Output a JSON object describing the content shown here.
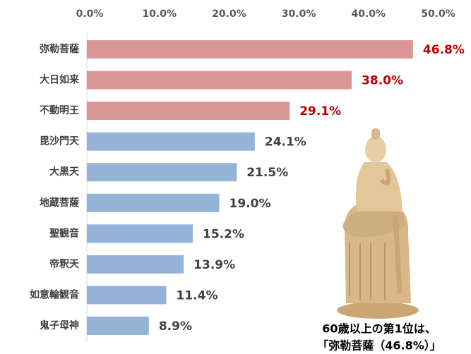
{
  "chart_data": {
    "type": "hbar",
    "categories": [
      "弥勒菩薩",
      "大日如来",
      "不動明王",
      "毘沙門天",
      "大黒天",
      "地蔵菩薩",
      "聖観音",
      "帝釈天",
      "如意輪観音",
      "鬼子母神"
    ],
    "values": [
      46.8,
      38.0,
      29.1,
      24.1,
      21.5,
      19.0,
      15.2,
      13.9,
      11.4,
      8.9
    ],
    "value_labels": [
      "46.8%",
      "38.0%",
      "29.1%",
      "24.1%",
      "21.5%",
      "19.0%",
      "15.2%",
      "13.9%",
      "11.4%",
      "8.9%"
    ],
    "colors": [
      "#d99694",
      "#d99694",
      "#d99694",
      "#95b3d7",
      "#95b3d7",
      "#95b3d7",
      "#95b3d7",
      "#95b3d7",
      "#95b3d7",
      "#95b3d7"
    ],
    "value_label_colors": [
      "#c00000",
      "#c00000",
      "#c00000",
      "#404040",
      "#404040",
      "#404040",
      "#404040",
      "#404040",
      "#404040",
      "#404040"
    ],
    "xlim": [
      0,
      50
    ],
    "xticks": [
      {
        "value": 0,
        "label": "0.0%"
      },
      {
        "value": 10,
        "label": "10.0%"
      },
      {
        "value": 20,
        "label": "20.0%"
      },
      {
        "value": 30,
        "label": "30.0%"
      },
      {
        "value": 40,
        "label": "40.0%"
      },
      {
        "value": 50,
        "label": "50.0%"
      }
    ],
    "annotations": [
      "60歳以上の第1位は、",
      "「弥勒菩薩（46.8%）」"
    ]
  }
}
